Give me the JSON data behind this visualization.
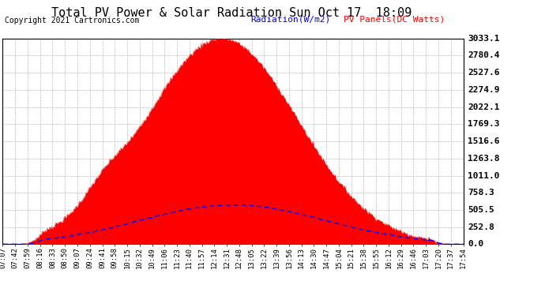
{
  "title": "Total PV Power & Solar Radiation Sun Oct 17  18:09",
  "copyright": "Copyright 2021 Cartronics.com",
  "legend_radiation": "Radiation(W/m2)",
  "legend_pv": "PV Panels(DC Watts)",
  "radiation_color": "#0000ff",
  "pv_color": "#ff0000",
  "plot_bg_color": "#ffffff",
  "fig_bg_color": "#ffffff",
  "grid_color": "#bbbbbb",
  "title_color": "#000000",
  "ymax": 3033.1,
  "yticks": [
    0.0,
    252.8,
    505.5,
    758.3,
    1011.0,
    1263.8,
    1516.6,
    1769.3,
    2022.1,
    2274.9,
    2527.6,
    2780.4,
    3033.1
  ],
  "xtick_labels": [
    "07:07",
    "07:42",
    "07:59",
    "08:16",
    "08:33",
    "08:50",
    "09:07",
    "09:24",
    "09:41",
    "09:58",
    "10:15",
    "10:32",
    "10:49",
    "11:06",
    "11:23",
    "11:40",
    "11:57",
    "12:14",
    "12:31",
    "12:48",
    "13:05",
    "13:22",
    "13:39",
    "13:56",
    "14:13",
    "14:30",
    "14:47",
    "15:04",
    "15:21",
    "15:38",
    "15:55",
    "16:12",
    "16:29",
    "16:46",
    "17:03",
    "17:20",
    "17:37",
    "17:54"
  ],
  "font_size_title": 11,
  "font_size_ticks": 6.5,
  "font_size_legend": 8,
  "font_size_copyright": 7,
  "font_size_yticks": 8
}
